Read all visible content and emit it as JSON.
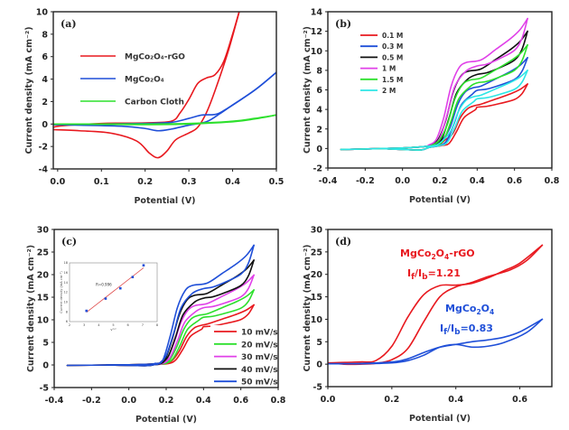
{
  "chart_data": [
    {
      "panel": "a",
      "type": "line",
      "panel_label": "(a)",
      "title": "",
      "xlabel": "Potential (V)",
      "ylabel": "Current density (mA cm⁻²)",
      "xlim": [
        -0.01,
        0.5
      ],
      "ylim": [
        -4,
        10
      ],
      "xticks": [
        0.0,
        0.1,
        0.2,
        0.3,
        0.4,
        0.5
      ],
      "xtick_labels": [
        "0.0",
        "0.1",
        "0.2",
        "0.3",
        "0.4",
        "0.5"
      ],
      "yticks": [
        -4,
        -2,
        0,
        2,
        4,
        6,
        8,
        10
      ],
      "ytick_labels": [
        "-4",
        "-2",
        "0",
        "2",
        "4",
        "6",
        "8",
        "10"
      ],
      "legend": "upper-left",
      "series": [
        {
          "name": "MgCo₂O₄-rGO",
          "color": "#e8191f",
          "forward": [
            [
              -0.01,
              -0.5
            ],
            [
              0.0,
              -0.2
            ],
            [
              0.1,
              0.05
            ],
            [
              0.2,
              0.1
            ],
            [
              0.26,
              0.25
            ],
            [
              0.28,
              1.0
            ],
            [
              0.3,
              2.2
            ],
            [
              0.32,
              3.6
            ],
            [
              0.34,
              4.1
            ],
            [
              0.36,
              4.4
            ],
            [
              0.38,
              5.6
            ],
            [
              0.4,
              8.0
            ],
            [
              0.415,
              10
            ]
          ],
          "reverse": [
            [
              0.415,
              10
            ],
            [
              0.39,
              6.5
            ],
            [
              0.36,
              3.0
            ],
            [
              0.34,
              1.0
            ],
            [
              0.32,
              -0.3
            ],
            [
              0.3,
              -0.8
            ],
            [
              0.27,
              -1.4
            ],
            [
              0.25,
              -2.4
            ],
            [
              0.23,
              -3.0
            ],
            [
              0.21,
              -2.6
            ],
            [
              0.18,
              -1.5
            ],
            [
              0.12,
              -0.8
            ],
            [
              0.05,
              -0.6
            ],
            [
              -0.01,
              -0.5
            ]
          ]
        },
        {
          "name": "MgCo₂O₄",
          "color": "#1f4fd8",
          "forward": [
            [
              -0.01,
              -0.05
            ],
            [
              0.1,
              0.0
            ],
            [
              0.2,
              0.05
            ],
            [
              0.26,
              0.15
            ],
            [
              0.3,
              0.5
            ],
            [
              0.33,
              0.8
            ],
            [
              0.36,
              0.85
            ],
            [
              0.38,
              1.2
            ],
            [
              0.42,
              2.2
            ],
            [
              0.46,
              3.3
            ],
            [
              0.5,
              4.6
            ]
          ],
          "reverse": [
            [
              0.5,
              4.6
            ],
            [
              0.45,
              3.0
            ],
            [
              0.4,
              1.7
            ],
            [
              0.37,
              0.9
            ],
            [
              0.34,
              0.2
            ],
            [
              0.3,
              -0.1
            ],
            [
              0.26,
              -0.45
            ],
            [
              0.23,
              -0.6
            ],
            [
              0.2,
              -0.4
            ],
            [
              0.15,
              -0.2
            ],
            [
              0.05,
              -0.1
            ],
            [
              -0.01,
              -0.05
            ]
          ]
        },
        {
          "name": "Carbon Cloth",
          "color": "#2de02d",
          "forward": [
            [
              -0.01,
              0.0
            ],
            [
              0.1,
              0.0
            ],
            [
              0.2,
              0.0
            ],
            [
              0.3,
              0.05
            ],
            [
              0.4,
              0.25
            ],
            [
              0.45,
              0.5
            ],
            [
              0.5,
              0.8
            ]
          ],
          "reverse": [
            [
              0.5,
              0.8
            ],
            [
              0.45,
              0.45
            ],
            [
              0.4,
              0.2
            ],
            [
              0.3,
              0.0
            ],
            [
              0.2,
              -0.05
            ],
            [
              0.1,
              -0.02
            ],
            [
              -0.01,
              0.0
            ]
          ]
        }
      ]
    },
    {
      "panel": "b",
      "type": "line",
      "panel_label": "(b)",
      "title": "",
      "xlabel": "Potential (V)",
      "ylabel": "Current density (mA cm⁻²)",
      "xlim": [
        -0.4,
        0.8
      ],
      "ylim": [
        -2,
        14
      ],
      "xticks": [
        -0.4,
        -0.2,
        0.0,
        0.2,
        0.4,
        0.6,
        0.8
      ],
      "xtick_labels": [
        "-0.4",
        "-0.2",
        "0.0",
        "0.2",
        "0.4",
        "0.6",
        "0.8"
      ],
      "yticks": [
        -2,
        0,
        2,
        4,
        6,
        8,
        10,
        12,
        14
      ],
      "ytick_labels": [
        "-2",
        "0",
        "2",
        "4",
        "6",
        "8",
        "10",
        "12",
        "14"
      ],
      "legend": "upper-left",
      "series": [
        {
          "name": "0.1 M",
          "color": "#e8191f",
          "plateau": 4.4,
          "end": 6.6,
          "onset_shift": 0.03
        },
        {
          "name": "0.3 M",
          "color": "#1f4fd8",
          "plateau": 6.2,
          "end": 9.3,
          "onset_shift": 0.015
        },
        {
          "name": "0.5 M",
          "color": "#111111",
          "plateau": 7.9,
          "end": 12.0,
          "onset_shift": -0.01
        },
        {
          "name": "1 M",
          "color": "#e040e8",
          "plateau": 8.8,
          "end": 13.3,
          "onset_shift": -0.02
        },
        {
          "name": "1.5 M",
          "color": "#2de02d",
          "plateau": 7.0,
          "end": 10.6,
          "onset_shift": 0.0
        },
        {
          "name": "2 M",
          "color": "#2ee6e6",
          "plateau": 5.3,
          "end": 8.0,
          "onset_shift": 0.02
        }
      ]
    },
    {
      "panel": "c",
      "type": "line",
      "panel_label": "(c)",
      "title": "",
      "xlabel": "Potential (V)",
      "ylabel": "Current density (mA cm⁻²)",
      "xlim": [
        -0.4,
        0.8
      ],
      "ylim": [
        -5,
        30
      ],
      "xticks": [
        -0.4,
        -0.2,
        0.0,
        0.2,
        0.4,
        0.6,
        0.8
      ],
      "xtick_labels": [
        "-0.4",
        "-0.2",
        "0.0",
        "0.2",
        "0.4",
        "0.6",
        "0.8"
      ],
      "yticks": [
        -5,
        0,
        5,
        10,
        15,
        20,
        25,
        30
      ],
      "ytick_labels": [
        "-5",
        "0",
        "5",
        "10",
        "15",
        "20",
        "25",
        "30"
      ],
      "legend": "lower-right",
      "series": [
        {
          "name": "10 mV/s",
          "color": "#e8191f",
          "plateau": 8.8,
          "end": 13.3,
          "onset_shift": 0.03
        },
        {
          "name": "20 mV/s",
          "color": "#2de02d",
          "plateau": 11.0,
          "end": 16.6,
          "onset_shift": 0.015
        },
        {
          "name": "30 mV/s",
          "color": "#e040e8",
          "plateau": 13.2,
          "end": 19.9,
          "onset_shift": 0.0
        },
        {
          "name": "40 mV/s",
          "color": "#111111",
          "plateau": 15.4,
          "end": 23.2,
          "onset_shift": -0.01
        },
        {
          "name": "50 mV/s",
          "color": "#1f4fd8",
          "plateau": 17.6,
          "end": 26.5,
          "onset_shift": -0.02
        }
      ],
      "inset": {
        "type": "scatter",
        "xlabel": "v¹ᐟ²",
        "ylabel": "Current density (mA cm⁻²)",
        "xlim": [
          2,
          8
        ],
        "ylim": [
          6,
          18
        ],
        "xticks": [
          2,
          3,
          4,
          5,
          6,
          7,
          8
        ],
        "xtick_labels": [
          "2",
          "3",
          "4",
          "5",
          "6",
          "7",
          "8"
        ],
        "yticks": [
          6,
          8,
          10,
          12,
          14,
          16,
          18
        ],
        "ytick_labels": [
          "6",
          "8",
          "10",
          "12",
          "14",
          "16",
          "18"
        ],
        "annotation": "R=0.996",
        "points": [
          [
            3.16,
            8.2
          ],
          [
            4.47,
            10.7
          ],
          [
            5.48,
            12.8
          ],
          [
            6.32,
            15.1
          ],
          [
            7.07,
            17.5
          ]
        ],
        "point_color": "#1f4fd8",
        "fit_line": [
          [
            3.16,
            7.9
          ],
          [
            7.07,
            17.0
          ]
        ],
        "fit_color": "#e05050"
      }
    },
    {
      "panel": "d",
      "type": "line",
      "panel_label": "(d)",
      "title": "",
      "xlabel": "Potential (V)",
      "ylabel": "Current density (mA cm⁻²)",
      "xlim": [
        0.0,
        0.7
      ],
      "ylim": [
        -5,
        30
      ],
      "xticks": [
        0.0,
        0.2,
        0.4,
        0.6
      ],
      "xtick_labels": [
        "0.0",
        "0.2",
        "0.4",
        "0.6"
      ],
      "yticks": [
        -5,
        0,
        5,
        10,
        15,
        20,
        25,
        30
      ],
      "ytick_labels": [
        "-5",
        "0",
        "5",
        "10",
        "15",
        "20",
        "25",
        "30"
      ],
      "annotations": [
        {
          "text_main": "MgCo",
          "sub1": "2",
          "mid": "O",
          "sub2": "4",
          "tail": "-rGO",
          "color": "#e8191f"
        },
        {
          "ratio_label": "I",
          "sub_f": "f",
          "slash": "/I",
          "sub_b": "b",
          "value": "=1.21",
          "color": "#e8191f"
        },
        {
          "text_main": "MgCo",
          "sub1": "2",
          "mid": "O",
          "sub2": "4",
          "tail": "",
          "color": "#1f4fd8"
        },
        {
          "ratio_label": "I",
          "sub_f": "f",
          "slash": "/I",
          "sub_b": "b",
          "value": "=0.83",
          "color": "#1f4fd8"
        }
      ],
      "series": [
        {
          "name": "MgCo₂O₄-rGO",
          "color": "#e8191f",
          "If_Ib": 1.21,
          "forward": [
            [
              0.0,
              0.3
            ],
            [
              0.1,
              0.5
            ],
            [
              0.15,
              0.8
            ],
            [
              0.2,
              4
            ],
            [
              0.25,
              10.5
            ],
            [
              0.3,
              15.5
            ],
            [
              0.35,
              17.5
            ],
            [
              0.4,
              17.6
            ],
            [
              0.45,
              18.0
            ],
            [
              0.5,
              19.2
            ],
            [
              0.55,
              20.8
            ],
            [
              0.6,
              22.5
            ],
            [
              0.67,
              26.5
            ]
          ],
          "reverse": [
            [
              0.67,
              26.5
            ],
            [
              0.62,
              23.0
            ],
            [
              0.57,
              21.0
            ],
            [
              0.5,
              19.5
            ],
            [
              0.45,
              18.2
            ],
            [
              0.4,
              17.2
            ],
            [
              0.35,
              15.0
            ],
            [
              0.3,
              9.5
            ],
            [
              0.25,
              3.5
            ],
            [
              0.2,
              1.0
            ],
            [
              0.15,
              0.2
            ],
            [
              0.1,
              0.0
            ],
            [
              0.05,
              0.0
            ],
            [
              0.0,
              0.3
            ]
          ]
        },
        {
          "name": "MgCo₂O₄",
          "color": "#1f4fd8",
          "If_Ib": 0.83,
          "forward": [
            [
              0.0,
              0.1
            ],
            [
              0.1,
              0.15
            ],
            [
              0.2,
              0.5
            ],
            [
              0.25,
              1.2
            ],
            [
              0.3,
              2.6
            ],
            [
              0.35,
              3.8
            ],
            [
              0.4,
              4.4
            ],
            [
              0.45,
              5.0
            ],
            [
              0.5,
              5.4
            ],
            [
              0.55,
              6.0
            ],
            [
              0.6,
              7.2
            ],
            [
              0.67,
              10.0
            ]
          ],
          "reverse": [
            [
              0.67,
              10.0
            ],
            [
              0.62,
              7.0
            ],
            [
              0.55,
              4.8
            ],
            [
              0.5,
              4.0
            ],
            [
              0.45,
              3.8
            ],
            [
              0.4,
              4.4
            ],
            [
              0.35,
              3.8
            ],
            [
              0.3,
              2.0
            ],
            [
              0.25,
              0.8
            ],
            [
              0.2,
              0.3
            ],
            [
              0.1,
              0.1
            ],
            [
              0.0,
              0.1
            ]
          ]
        }
      ]
    }
  ]
}
